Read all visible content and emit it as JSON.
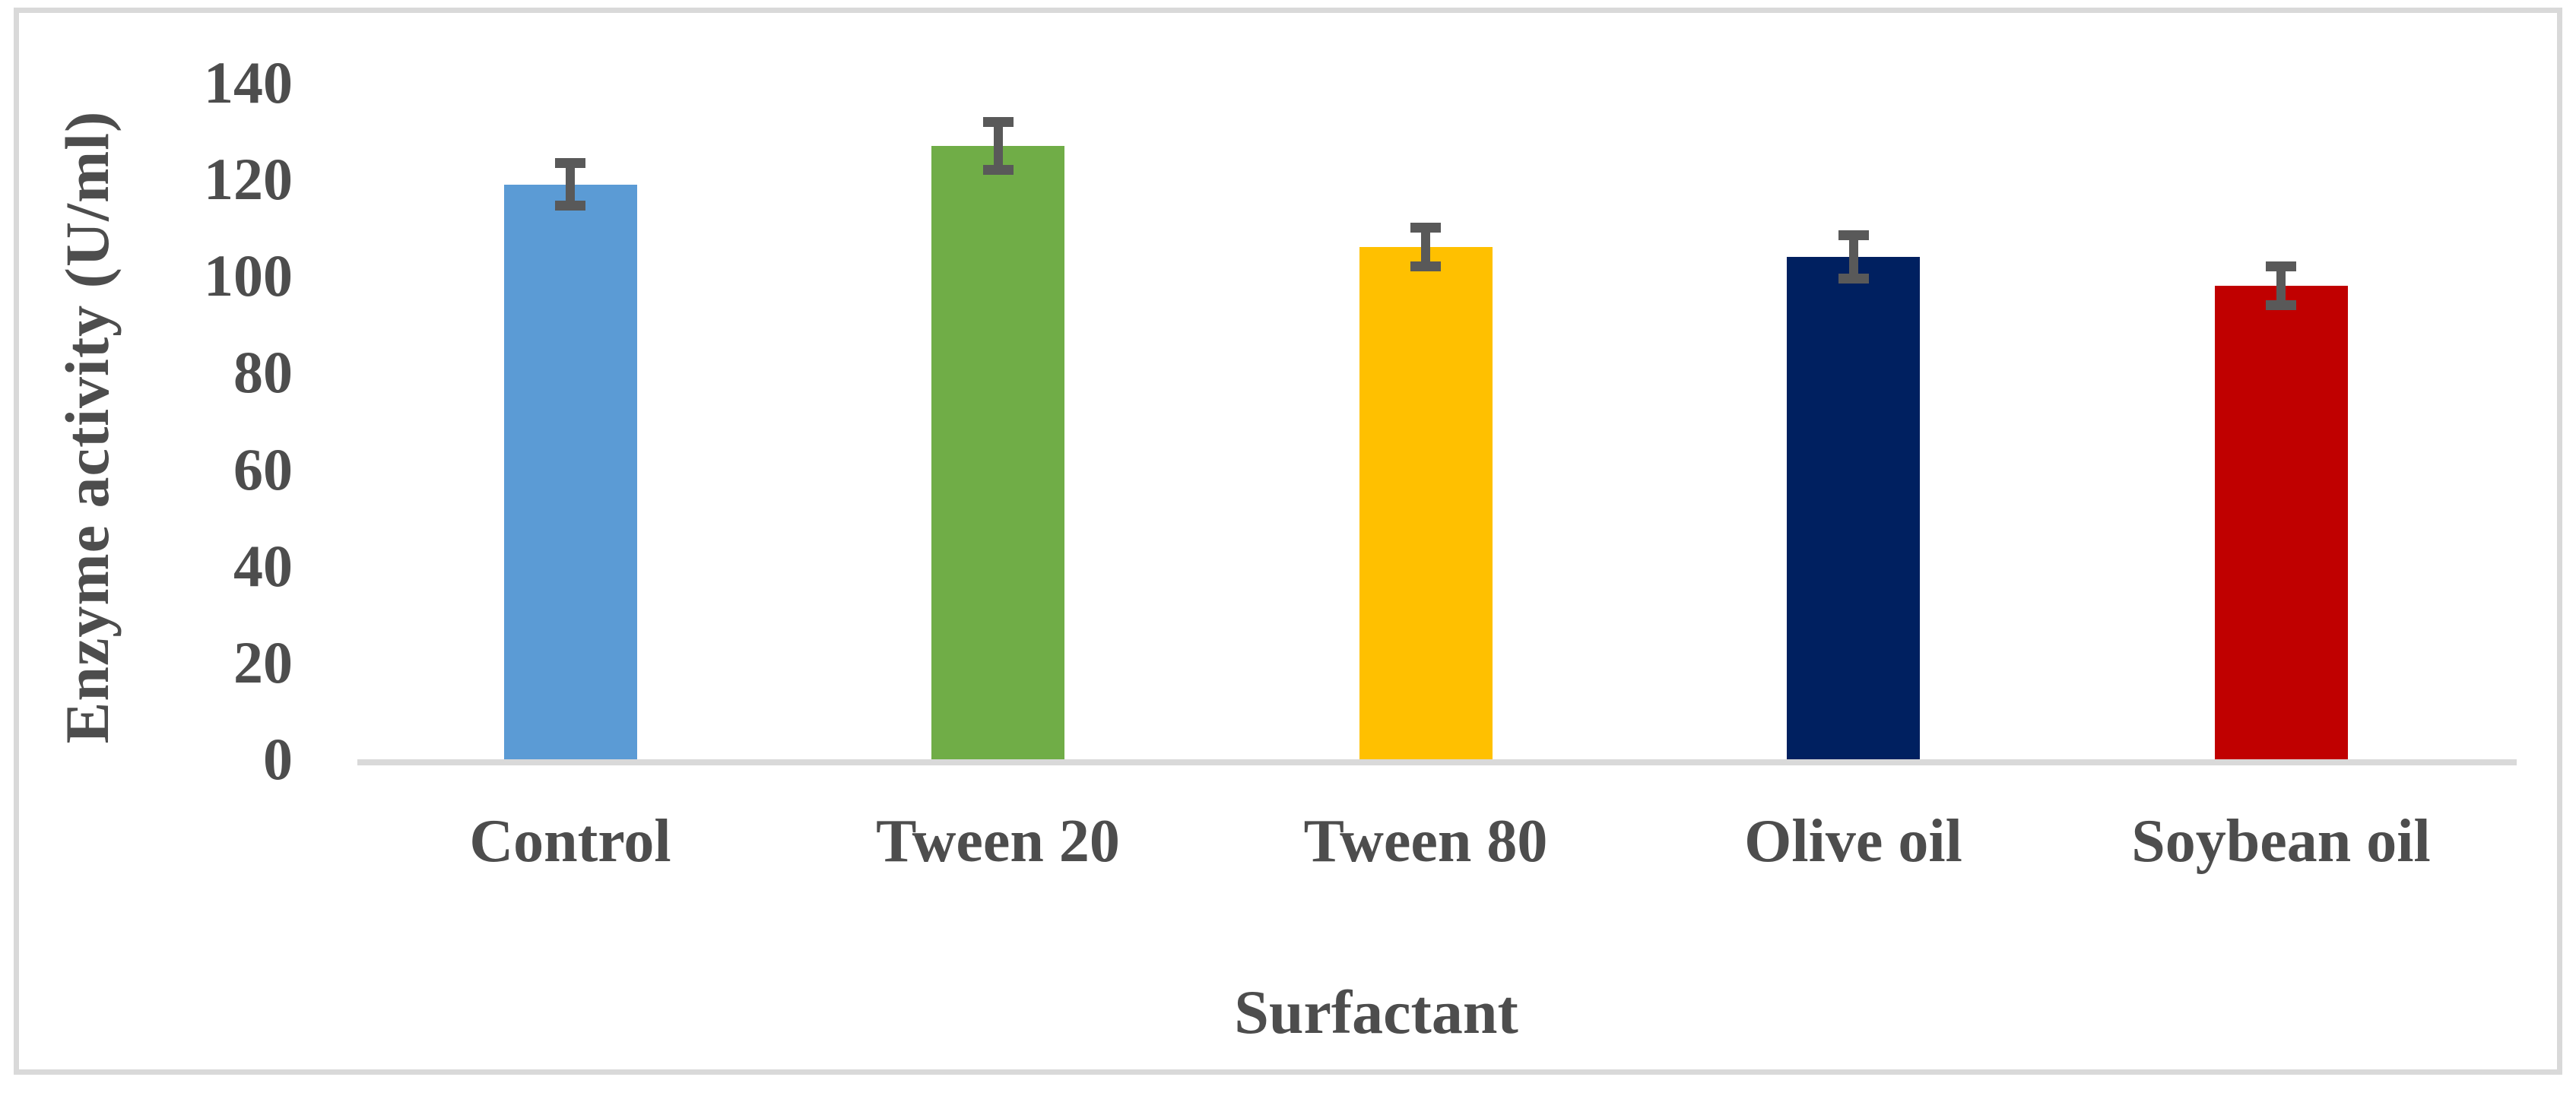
{
  "figure": {
    "background": "#FFFFFF",
    "frame_color": "#D9D9D9"
  },
  "chart_data": {
    "type": "bar",
    "title": "",
    "xlabel": "Surfactant",
    "ylabel": "Enzyme activity (U/ml)",
    "categories": [
      "Control",
      "Tween 20",
      "Tween 80",
      "Olive oil",
      "Soybean oil"
    ],
    "values": [
      119,
      127,
      106,
      104,
      98
    ],
    "error_bars": [
      5.5,
      6,
      5,
      5.5,
      5
    ],
    "bar_colors": [
      "#5B9BD5",
      "#70AD47",
      "#FFC000",
      "#002060",
      "#C00000"
    ],
    "error_bar_color": "#595959",
    "axis_line_color": "#D9D9D9",
    "text_color": "#4D4D4D",
    "yticks": [
      0,
      20,
      40,
      60,
      80,
      100,
      120,
      140
    ],
    "ylim": [
      0,
      140
    ],
    "grid": false,
    "legend": false
  }
}
